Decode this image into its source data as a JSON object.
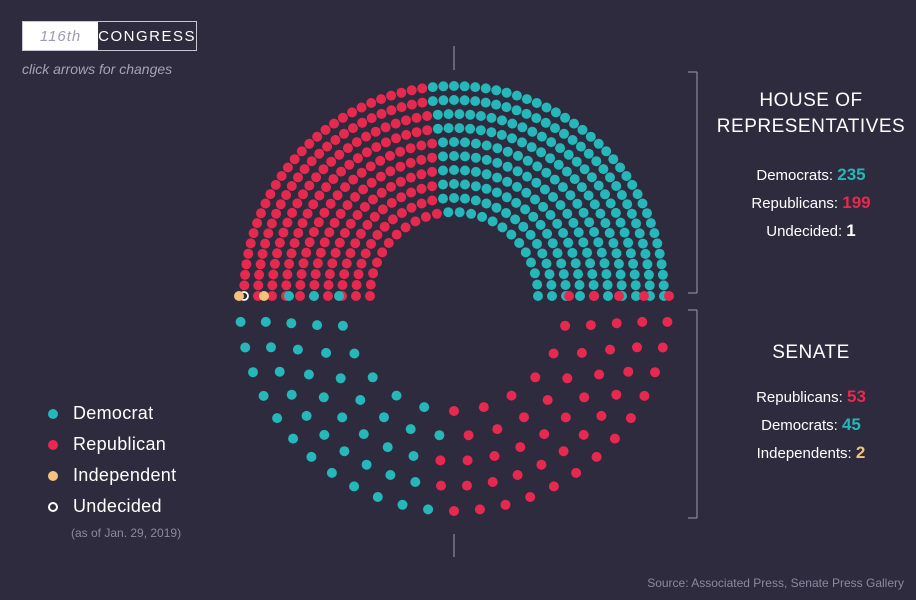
{
  "header": {
    "congress_number": "116th",
    "congress_label": "CONGRESS",
    "hint": "click arrows for changes"
  },
  "house": {
    "title_line1": "HOUSE OF",
    "title_line2": "REPRESENTATIVES",
    "stats": [
      {
        "label": "Democrats:",
        "value": "235",
        "color": "#25b7b9"
      },
      {
        "label": "Republicans:",
        "value": "199",
        "color": "#e8294f"
      },
      {
        "label": "Undecided:",
        "value": "1",
        "color": "#ffffff"
      }
    ]
  },
  "senate": {
    "title": "SENATE",
    "stats": [
      {
        "label": "Republicans:",
        "value": "53",
        "color": "#e8294f"
      },
      {
        "label": "Democrats:",
        "value": "45",
        "color": "#25b7b9"
      },
      {
        "label": "Independents:",
        "value": "2",
        "color": "#f3c27d"
      }
    ]
  },
  "legend": {
    "items": [
      {
        "label": "Democrat",
        "color": "#25b7b9"
      },
      {
        "label": "Republican",
        "color": "#e8294f"
      },
      {
        "label": "Independent",
        "color": "#f3c27d"
      },
      {
        "label": "Undecided",
        "color": "#ffffff"
      }
    ],
    "as_of": "(as of Jan. 29, 2019)"
  },
  "source": "Source: Associated Press, Senate Press Gallery",
  "colors": {
    "background": "#2d2b3d",
    "democrat": "#25b7b9",
    "republican": "#e8294f",
    "independent": "#f3c27d",
    "undecided": "#ffffff",
    "divider": "#8c89a0"
  },
  "chart_data": {
    "type": "parliament",
    "charts": [
      {
        "chamber": "House of Representatives",
        "seats": [
          {
            "party": "Democrat",
            "count": 235
          },
          {
            "party": "Republican",
            "count": 199
          },
          {
            "party": "Undecided",
            "count": 1
          }
        ]
      },
      {
        "chamber": "Senate",
        "seats": [
          {
            "party": "Republican",
            "count": 53
          },
          {
            "party": "Democrat",
            "count": 45
          },
          {
            "party": "Independent",
            "count": 2
          }
        ]
      }
    ]
  }
}
